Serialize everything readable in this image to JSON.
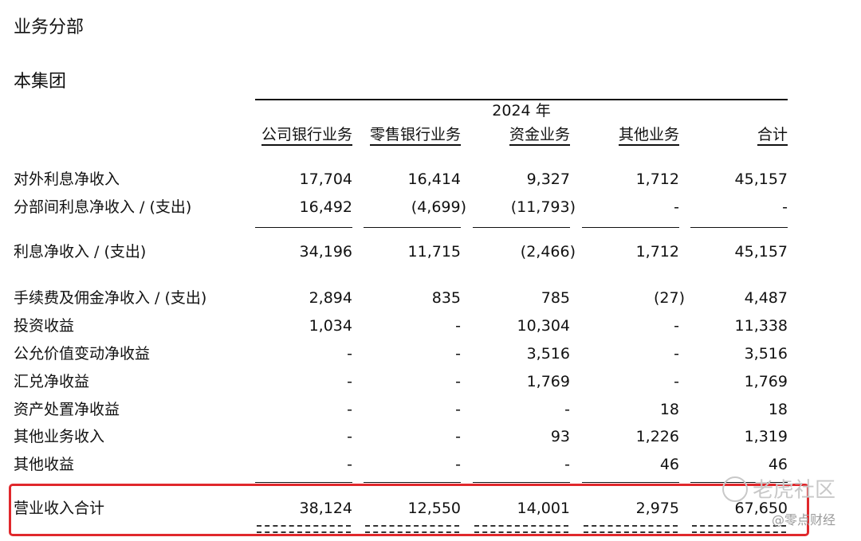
{
  "title": "业务分部",
  "subtitle": "本集团",
  "year_label": "2024 年",
  "columns": [
    "公司银行业务",
    "零售银行业务",
    "资金业务",
    "其他业务",
    "合计"
  ],
  "rows": [
    {
      "label": "对外利息净收入",
      "values": [
        "17,704",
        "16,414",
        "9,327",
        "1,712",
        "45,157"
      ]
    },
    {
      "label": "分部间利息净收入 / (支出)",
      "values": [
        "16,492",
        "(4,699)",
        "(11,793)",
        "-",
        "-"
      ]
    },
    {
      "label": "利息净收入 / (支出)",
      "values": [
        "34,196",
        "11,715",
        "(2,466)",
        "1,712",
        "45,157"
      ]
    },
    {
      "label": "手续费及佣金净收入 / (支出)",
      "values": [
        "2,894",
        "835",
        "785",
        "(27)",
        "4,487"
      ]
    },
    {
      "label": "投资收益",
      "values": [
        "1,034",
        "-",
        "10,304",
        "-",
        "11,338"
      ]
    },
    {
      "label": "公允价值变动净收益",
      "values": [
        "-",
        "-",
        "3,516",
        "-",
        "3,516"
      ]
    },
    {
      "label": "汇兑净收益",
      "values": [
        "-",
        "-",
        "1,769",
        "-",
        "1,769"
      ]
    },
    {
      "label": "资产处置净收益",
      "values": [
        "-",
        "-",
        "-",
        "18",
        "18"
      ]
    },
    {
      "label": "其他业务收入",
      "values": [
        "-",
        "-",
        "93",
        "1,226",
        "1,319"
      ]
    },
    {
      "label": "其他收益",
      "values": [
        "-",
        "-",
        "-",
        "46",
        "46"
      ]
    },
    {
      "label": "营业收入合计",
      "values": [
        "38,124",
        "12,550",
        "14,001",
        "2,975",
        "67,650"
      ]
    }
  ],
  "highlight_color": "#e0282c",
  "watermarks": {
    "brand": "老虎社区",
    "credit": "@零点财经"
  }
}
